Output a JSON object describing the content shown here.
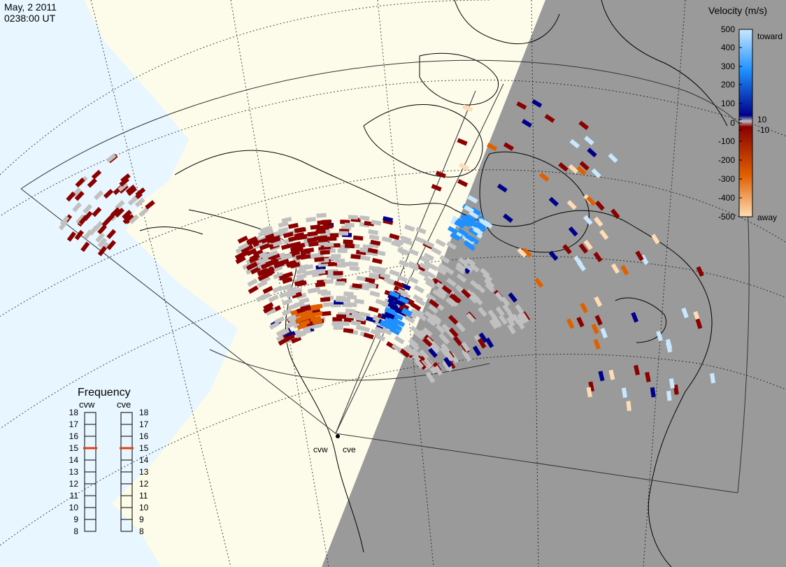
{
  "header": {
    "date": "May, 2 2011",
    "time": "0238:00 UT"
  },
  "colorbar": {
    "title": "Velocity (m/s)",
    "ticks": [
      "500",
      "400",
      "300",
      "200",
      "100",
      "10",
      "0",
      "-10",
      "-100",
      "-200",
      "-300",
      "-400",
      "-500"
    ],
    "toward_label": "toward",
    "away_label": "away",
    "colors": {
      "toward_high": "#c8e8ff",
      "toward_mid": "#1e90ff",
      "toward_low": "#00008b",
      "ground": "#c0c0c0",
      "away_low": "#8b0000",
      "away_mid": "#e06000",
      "away_high": "#ffdcb4"
    }
  },
  "frequency_panel": {
    "title": "Frequency",
    "radars": [
      {
        "name": "cvw",
        "frequency": 15
      },
      {
        "name": "cve",
        "frequency": 15
      }
    ],
    "scale": [
      "18",
      "17",
      "16",
      "15",
      "14",
      "13",
      "12",
      "11",
      "10",
      "9",
      "8"
    ],
    "marker_color": "#e04010"
  },
  "radar_sites": [
    {
      "name": "cvw"
    },
    {
      "name": "cve"
    }
  ],
  "colors": {
    "ocean": "#e8f6ff",
    "day_land": "#fdfbe9",
    "night": "#9a9a9a",
    "coast": "#000000",
    "grid": "#000000"
  }
}
